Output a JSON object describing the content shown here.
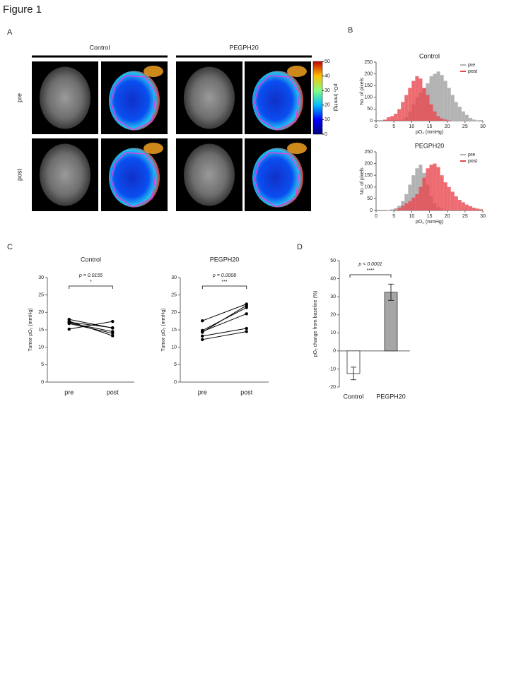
{
  "figure_title": "Figure 1",
  "panel_labels": {
    "a": "A",
    "b": "B",
    "c": "C",
    "d": "D"
  },
  "panel_a": {
    "groups": [
      "Control",
      "PEGPH20"
    ],
    "rows": [
      "pre",
      "post"
    ],
    "colorbar": {
      "label": "pO₂ (mmHg)",
      "lim": [
        0,
        50
      ],
      "ticks": [
        0,
        10,
        20,
        30,
        40,
        50
      ]
    }
  },
  "chart_data": [
    {
      "type": "histogram",
      "title": "Control",
      "x_label": "pO₂ (mmHg)",
      "y_label": "No. of pixels",
      "bins": [
        0,
        1,
        2,
        3,
        4,
        5,
        6,
        7,
        8,
        9,
        10,
        11,
        12,
        13,
        14,
        15,
        16,
        17,
        18,
        19,
        20,
        21,
        22,
        23,
        24,
        25,
        26,
        27,
        28,
        29,
        30
      ],
      "xlim": [
        0,
        30
      ],
      "xticks": [
        0,
        5,
        10,
        15,
        20,
        25,
        30
      ],
      "ylim": [
        0,
        250
      ],
      "yticks": [
        0,
        50,
        100,
        150,
        200,
        250
      ],
      "legend": "upper right",
      "series": [
        {
          "name": "pre",
          "color": "#b3b3b3",
          "values": [
            0,
            0,
            0,
            0,
            0,
            0,
            0,
            5,
            15,
            40,
            70,
            100,
            120,
            140,
            160,
            190,
            200,
            210,
            195,
            170,
            140,
            110,
            80,
            60,
            40,
            25,
            12,
            5,
            2,
            0
          ]
        },
        {
          "name": "post",
          "color": "#e8474f",
          "values": [
            0,
            0,
            5,
            15,
            20,
            30,
            50,
            80,
            110,
            140,
            170,
            190,
            180,
            140,
            110,
            70,
            40,
            20,
            10,
            5,
            2,
            0,
            0,
            0,
            0,
            0,
            0,
            0,
            0,
            0
          ]
        }
      ]
    },
    {
      "type": "histogram",
      "title": "PEGPH20",
      "x_label": "pO₂ (mmHg)",
      "y_label": "No. of pixels",
      "bins": [
        0,
        1,
        2,
        3,
        4,
        5,
        6,
        7,
        8,
        9,
        10,
        11,
        12,
        13,
        14,
        15,
        16,
        17,
        18,
        19,
        20,
        21,
        22,
        23,
        24,
        25,
        26,
        27,
        28,
        29,
        30
      ],
      "xlim": [
        0,
        30
      ],
      "xticks": [
        0,
        5,
        10,
        15,
        20,
        25,
        30
      ],
      "ylim": [
        0,
        250
      ],
      "yticks": [
        0,
        50,
        100,
        150,
        200,
        250
      ],
      "legend": "upper right",
      "series": [
        {
          "name": "pre",
          "color": "#b3b3b3",
          "values": [
            0,
            0,
            0,
            2,
            5,
            10,
            20,
            40,
            70,
            110,
            150,
            180,
            195,
            160,
            110,
            60,
            30,
            15,
            8,
            3,
            1,
            0,
            0,
            0,
            0,
            0,
            0,
            0,
            0,
            0
          ]
        },
        {
          "name": "post",
          "color": "#e8474f",
          "values": [
            0,
            0,
            0,
            0,
            0,
            3,
            10,
            20,
            30,
            40,
            55,
            70,
            100,
            140,
            180,
            195,
            200,
            185,
            150,
            120,
            100,
            80,
            60,
            45,
            35,
            25,
            18,
            12,
            8,
            5
          ]
        }
      ]
    },
    {
      "type": "line",
      "title": "Control",
      "y_label": "Tumor pO₂ (mmHg)",
      "categories": [
        "pre",
        "post"
      ],
      "ylim": [
        0,
        30
      ],
      "yticks": [
        0,
        5,
        10,
        15,
        20,
        25,
        30
      ],
      "p_value": "p = 0.0155",
      "significance": "*",
      "series": [
        {
          "color": "#000000",
          "values": [
            18,
            15.5
          ]
        },
        {
          "color": "#000000",
          "values": [
            17.5,
            13.3
          ]
        },
        {
          "color": "#000000",
          "values": [
            17,
            14.5
          ]
        },
        {
          "color": "#000000",
          "values": [
            16.8,
            14
          ]
        },
        {
          "color": "#000000",
          "values": [
            15.2,
            17.4
          ]
        },
        {
          "color": "#000000",
          "values": [
            17.2,
            15.6
          ]
        }
      ]
    },
    {
      "type": "line",
      "title": "PEGPH20",
      "y_label": "Tumor pO₂ (mmHg)",
      "categories": [
        "pre",
        "post"
      ],
      "ylim": [
        0,
        30
      ],
      "yticks": [
        0,
        5,
        10,
        15,
        20,
        25,
        30
      ],
      "p_value": "p = 0.0008",
      "significance": "***",
      "series": [
        {
          "color": "#000000",
          "values": [
            17.6,
            22.4
          ]
        },
        {
          "color": "#000000",
          "values": [
            14.8,
            21.4
          ]
        },
        {
          "color": "#000000",
          "values": [
            14.5,
            19.6
          ]
        },
        {
          "color": "#000000",
          "values": [
            13.2,
            15.4
          ]
        },
        {
          "color": "#000000",
          "values": [
            12.2,
            14.5
          ]
        },
        {
          "color": "#000000",
          "values": [
            14.3,
            22
          ]
        }
      ]
    },
    {
      "type": "bar",
      "y_label": "pO₂ change from baseline (%)",
      "categories": [
        "Control",
        "PEGPH20"
      ],
      "values": [
        -12.5,
        32.5
      ],
      "errors": [
        3.5,
        4.5
      ],
      "colors": [
        "#ffffff",
        "#a6a6a6"
      ],
      "ylim": [
        -20,
        50
      ],
      "yticks": [
        -20,
        -10,
        0,
        10,
        20,
        30,
        40,
        50
      ],
      "p_value": "p < 0.0001",
      "significance": "****"
    }
  ]
}
